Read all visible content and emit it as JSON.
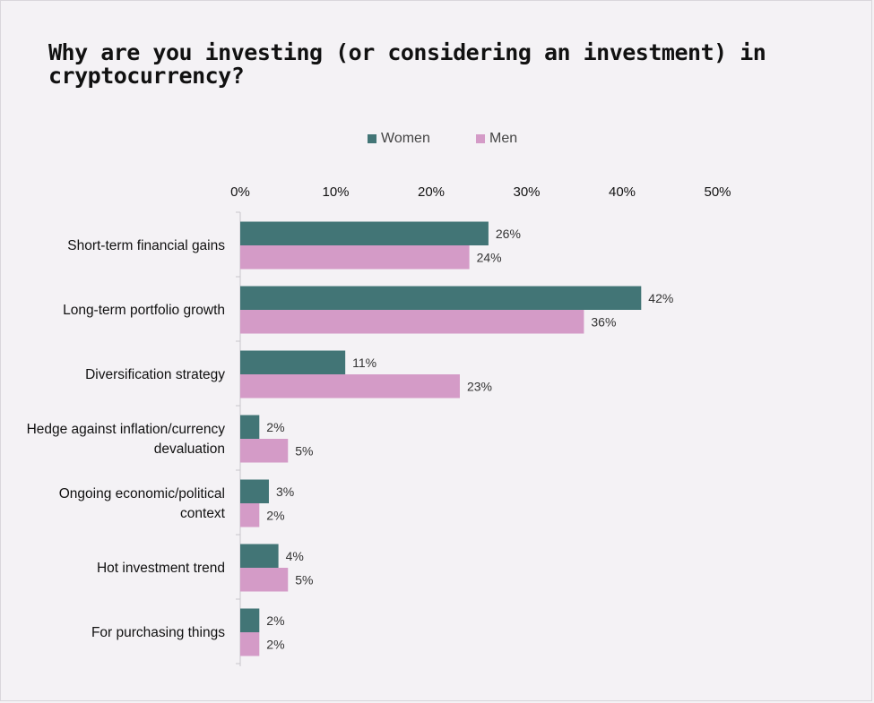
{
  "chart_data": {
    "type": "bar",
    "orientation": "horizontal",
    "title": "Why are you investing (or considering an investment) in cryptocurrency?",
    "categories": [
      [
        "Short-term financial gains"
      ],
      [
        "Long-term portfolio growth"
      ],
      [
        "Diversification strategy"
      ],
      [
        "Hedge against inflation/currency",
        "devaluation"
      ],
      [
        "Ongoing economic/political",
        "context"
      ],
      [
        "Hot investment trend"
      ],
      [
        "For purchasing things"
      ]
    ],
    "series": [
      {
        "name": "Women",
        "color": "#427576",
        "values": [
          26,
          42,
          11,
          2,
          3,
          4,
          2
        ],
        "labels": [
          "26%",
          "42%",
          "11%",
          "2%",
          "3%",
          "4%",
          "2%"
        ]
      },
      {
        "name": "Men",
        "color": "#d49bc7",
        "values": [
          24,
          36,
          23,
          5,
          2,
          5,
          2
        ],
        "labels": [
          "24%",
          "36%",
          "23%",
          "5%",
          "2%",
          "5%",
          "2%"
        ]
      }
    ],
    "x_ticks": [
      "0%",
      "10%",
      "20%",
      "30%",
      "40%",
      "50%"
    ],
    "xlim": [
      0,
      50
    ],
    "grid": false,
    "legend_position": "top"
  }
}
